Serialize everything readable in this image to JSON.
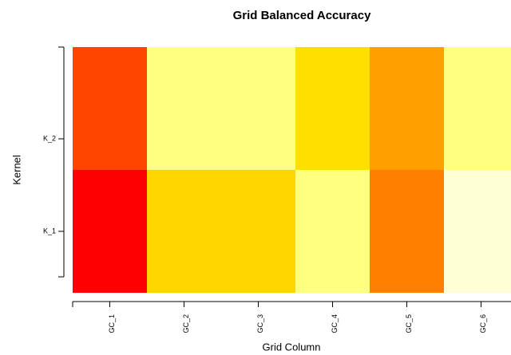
{
  "chart_data": {
    "type": "heatmap",
    "title": "Grid Balanced Accuracy",
    "x_label": "Grid Column",
    "y_label": "Kernel",
    "x_categories": [
      "GC_1",
      "GC_2",
      "GC_3",
      "GC_4",
      "GC_5",
      "GC_6"
    ],
    "y_categories": [
      "K_1",
      "K_2"
    ],
    "values": [
      [
        0.55,
        0.75,
        0.75,
        0.8,
        0.65,
        0.85
      ],
      [
        0.6,
        0.8,
        0.8,
        0.75,
        0.7,
        0.8
      ]
    ],
    "colors": [
      [
        "#ff0000",
        "#ffd700",
        "#ffd700",
        "#ffff80",
        "#ff8000",
        "#ffffd5"
      ],
      [
        "#ff4500",
        "#ffff80",
        "#ffff80",
        "#ffdf00",
        "#ffa000",
        "#ffff80"
      ]
    ]
  }
}
